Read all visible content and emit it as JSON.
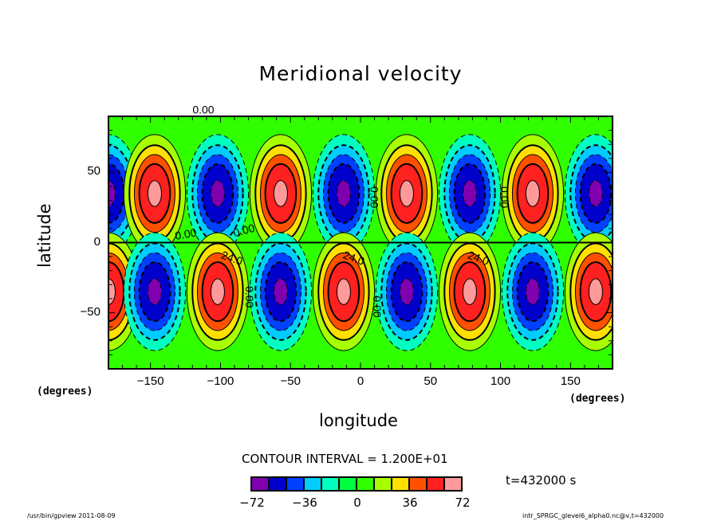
{
  "chart_data": {
    "type": "heatmap",
    "subtype": "filled-contour",
    "title": "Meridional velocity",
    "xlabel": "longitude",
    "ylabel": "latitude",
    "x_units": "(degrees)",
    "y_units": "(degrees)",
    "xlim": [
      -180,
      180
    ],
    "ylim": [
      -90,
      90
    ],
    "xticks": [
      -150,
      -100,
      -50,
      0,
      50,
      100,
      150
    ],
    "yticks": [
      50,
      0,
      -50
    ],
    "xtick_labels": [
      "−150",
      "−100",
      "−50",
      "0",
      "50",
      "100",
      "150"
    ],
    "ytick_labels": [
      "50",
      "0",
      "−50"
    ],
    "field_description": "Zonal wavenumber-8 pattern of alternating positive/negative meridional velocity cells, antisymmetric about the equator, cell centers near ±35° latitude, peak |v| > 60",
    "cell_centers_north": [
      {
        "lon": -180,
        "sign": -1
      },
      {
        "lon": -147,
        "sign": 1
      },
      {
        "lon": -102,
        "sign": -1
      },
      {
        "lon": -57,
        "sign": 1
      },
      {
        "lon": -12,
        "sign": -1
      },
      {
        "lon": 33,
        "sign": 1
      },
      {
        "lon": 78,
        "sign": -1
      },
      {
        "lon": 123,
        "sign": 1
      },
      {
        "lon": 168,
        "sign": -1
      }
    ],
    "cell_center_lat": 35,
    "contour_interval": 12,
    "contour_labels": [
      "0.00",
      "0.00",
      "0.00",
      "0.00",
      "0.00",
      "0.00",
      "0.00",
      "24.0",
      "24.0",
      "24.0"
    ],
    "colorbar": {
      "levels": [
        -72,
        -60,
        -48,
        -36,
        -24,
        -12,
        0,
        12,
        24,
        36,
        48,
        60,
        72
      ],
      "tick_labels": [
        "−72",
        "−36",
        "0",
        "36",
        "72"
      ],
      "colors": [
        "#8000b0",
        "#0000cc",
        "#0040ff",
        "#00ccff",
        "#00ffc0",
        "#00ff40",
        "#30ff00",
        "#a8ff00",
        "#ffe000",
        "#ff5000",
        "#ff2020",
        "#ff9a9a"
      ]
    }
  },
  "annotations": {
    "contour_interval_text": "CONTOUR INTERVAL = 1.200E+01",
    "time_text": "t=432000 s",
    "footer_left": "/usr/bin/gpview   2011-08-09",
    "footer_right": "intr_SPRGC_glevel6_alpha0.nc@v,t=432000"
  }
}
